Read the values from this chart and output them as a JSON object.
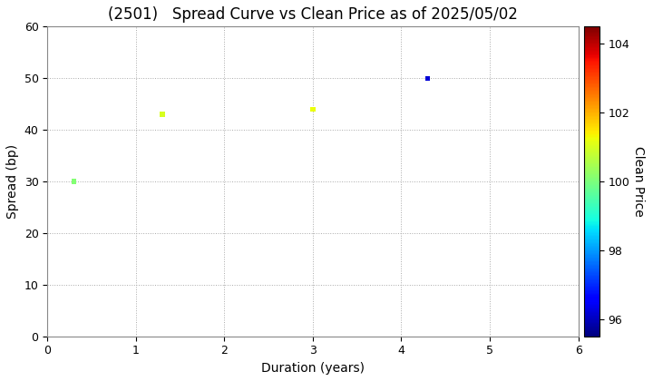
{
  "title": "(2501)   Spread Curve vs Clean Price as of 2025/05/02",
  "xlabel": "Duration (years)",
  "ylabel": "Spread (bp)",
  "colorbar_label": "Clean Price",
  "points": [
    {
      "duration": 0.3,
      "spread": 30,
      "clean_price": 100.1
    },
    {
      "duration": 1.3,
      "spread": 43,
      "clean_price": 101.0
    },
    {
      "duration": 3.0,
      "spread": 44,
      "clean_price": 101.2
    },
    {
      "duration": 4.3,
      "spread": 50,
      "clean_price": 96.2
    }
  ],
  "xlim": [
    0,
    6
  ],
  "ylim": [
    0,
    60
  ],
  "xticks": [
    0,
    1,
    2,
    3,
    4,
    5,
    6
  ],
  "yticks": [
    0,
    10,
    20,
    30,
    40,
    50,
    60
  ],
  "colorbar_min": 95.5,
  "colorbar_max": 104.5,
  "colorbar_ticks": [
    96,
    98,
    100,
    102,
    104
  ],
  "grid_color": "#aaaaaa",
  "background_color": "#ffffff",
  "marker_size": 15,
  "title_fontsize": 12
}
